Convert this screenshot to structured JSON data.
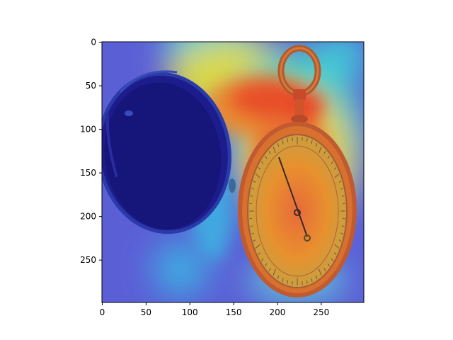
{
  "image": {
    "description_icon": "pocket-watch-heatmap-icon",
    "colormap": "jet",
    "colors": {
      "hot": "#e8402a",
      "warm": "#f0a030",
      "mid": "#e6e040",
      "cool": "#40d8c8",
      "cold": "#5a5ad8",
      "deep": "#1a1a8a"
    }
  },
  "axes": {
    "xlim": [
      0,
      299
    ],
    "ylim": [
      299,
      0
    ],
    "x_ticks": [
      "0",
      "50",
      "100",
      "150",
      "200",
      "250"
    ],
    "y_ticks": [
      "0",
      "50",
      "100",
      "150",
      "200",
      "250"
    ]
  }
}
